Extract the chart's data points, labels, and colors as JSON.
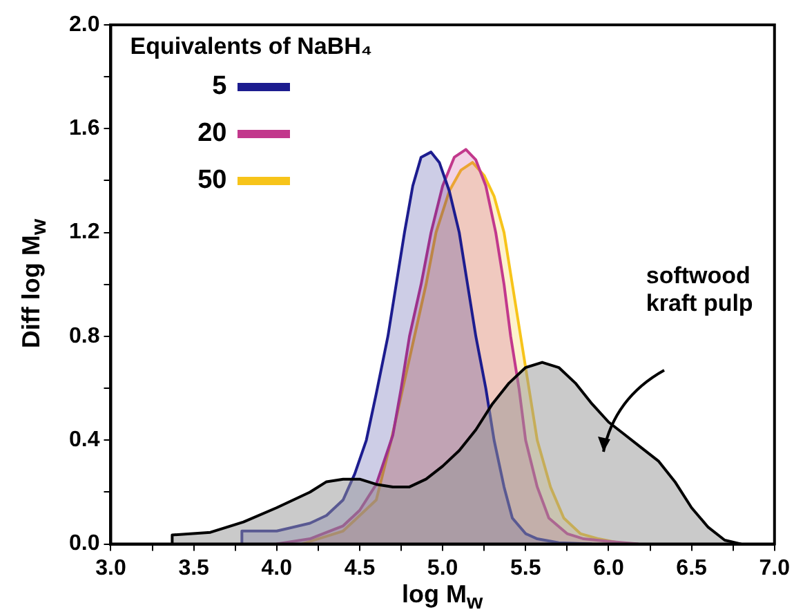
{
  "chart_data": {
    "type": "area",
    "xlabel": "log M$_{w}$",
    "ylabel": "Diff log M$_{w}$",
    "legend_title": "Equivalents of NaBH₄",
    "legend": "top left",
    "grid": false,
    "xlim": [
      3.0,
      7.0
    ],
    "ylim": [
      0.0,
      2.0
    ],
    "xticks": [
      {
        "value": 3,
        "label": "3.0"
      },
      {
        "value": 3.25,
        "label": null
      },
      {
        "value": 3.5,
        "label": "3.5"
      },
      {
        "value": 3.75,
        "label": null
      },
      {
        "value": 4,
        "label": "4.0"
      },
      {
        "value": 4.25,
        "label": null
      },
      {
        "value": 4.5,
        "label": "4.5"
      },
      {
        "value": 4.75,
        "label": null
      },
      {
        "value": 5,
        "label": "5.0"
      },
      {
        "value": 5.25,
        "label": null
      },
      {
        "value": 5.5,
        "label": "5.5"
      },
      {
        "value": 5.75,
        "label": null
      },
      {
        "value": 6,
        "label": "6.0"
      },
      {
        "value": 6.25,
        "label": null
      },
      {
        "value": 6.5,
        "label": "6.5"
      },
      {
        "value": 6.75,
        "label": null
      },
      {
        "value": 7,
        "label": "7.0"
      }
    ],
    "yticks": [
      {
        "value": 0,
        "label": "0.0"
      },
      {
        "value": 0.2,
        "label": null
      },
      {
        "value": 0.4,
        "label": "0.4"
      },
      {
        "value": 0.6,
        "label": null
      },
      {
        "value": 0.8,
        "label": "0.8"
      },
      {
        "value": 1.0,
        "label": null
      },
      {
        "value": 1.2,
        "label": "1.2"
      },
      {
        "value": 1.4,
        "label": null
      },
      {
        "value": 1.6,
        "label": "1.6"
      },
      {
        "value": 1.8,
        "label": null
      },
      {
        "value": 2.0,
        "label": "2.0"
      }
    ],
    "series": [
      {
        "color": "#000000",
        "x": [
          3.37,
          3.37,
          3.6,
          3.8,
          4.0,
          4.2,
          4.3,
          4.4,
          4.5,
          4.6,
          4.7,
          4.8,
          4.9,
          5.0,
          5.1,
          5.2,
          5.3,
          5.4,
          5.5,
          5.6,
          5.7,
          5.8,
          5.9,
          6.0,
          6.1,
          6.2,
          6.3,
          6.4,
          6.5,
          6.6,
          6.7,
          6.8
        ],
        "values": [
          0,
          0.035,
          0.045,
          0.085,
          0.14,
          0.2,
          0.24,
          0.25,
          0.25,
          0.23,
          0.22,
          0.22,
          0.25,
          0.3,
          0.36,
          0.44,
          0.54,
          0.62,
          0.68,
          0.7,
          0.68,
          0.62,
          0.54,
          0.47,
          0.42,
          0.37,
          0.32,
          0.24,
          0.14,
          0.065,
          0.015,
          0
        ]
      },
      {
        "name": "5",
        "color": "#1c1c8f",
        "x": [
          3.79,
          3.79,
          4.0,
          4.2,
          4.3,
          4.4,
          4.47,
          4.54,
          4.6,
          4.67,
          4.72,
          4.77,
          4.82,
          4.87,
          4.93,
          4.98,
          5.04,
          5.1,
          5.15,
          5.2,
          5.26,
          5.31,
          5.37,
          5.42,
          5.5,
          5.57,
          5.7,
          5.9
        ],
        "values": [
          0,
          0.05,
          0.05,
          0.08,
          0.11,
          0.17,
          0.27,
          0.4,
          0.58,
          0.8,
          1.0,
          1.2,
          1.38,
          1.49,
          1.51,
          1.47,
          1.36,
          1.2,
          1.0,
          0.8,
          0.6,
          0.4,
          0.22,
          0.1,
          0.04,
          0.02,
          0.005,
          0
        ]
      },
      {
        "name": "20",
        "color": "#c2388c",
        "x": [
          4.0,
          4.2,
          4.4,
          4.5,
          4.6,
          4.7,
          4.75,
          4.8,
          4.87,
          4.93,
          5.0,
          5.07,
          5.14,
          5.2,
          5.26,
          5.32,
          5.37,
          5.41,
          5.46,
          5.5,
          5.57,
          5.64,
          5.75,
          5.85,
          6.0,
          6.18
        ],
        "values": [
          0,
          0.02,
          0.07,
          0.13,
          0.23,
          0.42,
          0.6,
          0.8,
          1.0,
          1.2,
          1.38,
          1.49,
          1.52,
          1.48,
          1.38,
          1.2,
          1.0,
          0.8,
          0.6,
          0.4,
          0.22,
          0.1,
          0.04,
          0.02,
          0.01,
          0
        ]
      },
      {
        "name": "50",
        "color": "#f7c41a",
        "x": [
          4.15,
          4.4,
          4.6,
          4.69,
          4.76,
          4.83,
          4.9,
          4.96,
          5.04,
          5.11,
          5.18,
          5.25,
          5.31,
          5.37,
          5.42,
          5.47,
          5.52,
          5.57,
          5.65,
          5.73,
          5.83,
          5.94,
          6.1
        ],
        "values": [
          0,
          0.05,
          0.17,
          0.4,
          0.6,
          0.8,
          1.0,
          1.2,
          1.36,
          1.44,
          1.47,
          1.42,
          1.34,
          1.2,
          1.0,
          0.8,
          0.6,
          0.4,
          0.22,
          0.1,
          0.04,
          0.02,
          0
        ]
      }
    ],
    "annotations": [
      "softwood kraft pulp"
    ]
  }
}
